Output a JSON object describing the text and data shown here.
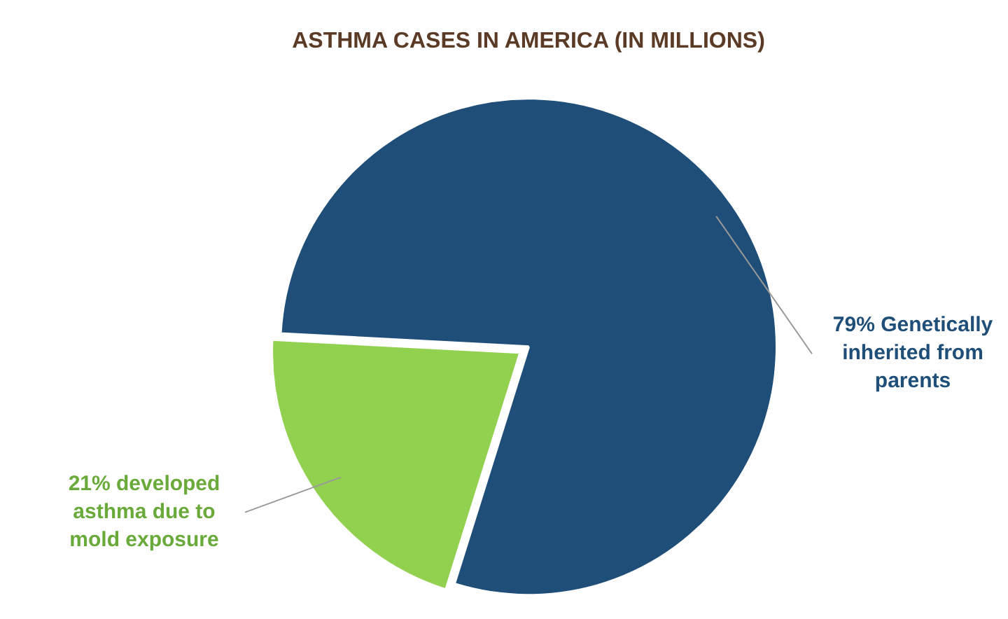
{
  "chart_data": {
    "type": "pie",
    "title": "ASTHMA CASES IN AMERICA (IN MILLIONS)",
    "categories": [
      "79% Genetically inherited from parents",
      "21% developed asthma due to mold exposure"
    ],
    "values": [
      79,
      21
    ],
    "colors": [
      "#1f4e79",
      "#92d050"
    ],
    "legend": false
  }
}
